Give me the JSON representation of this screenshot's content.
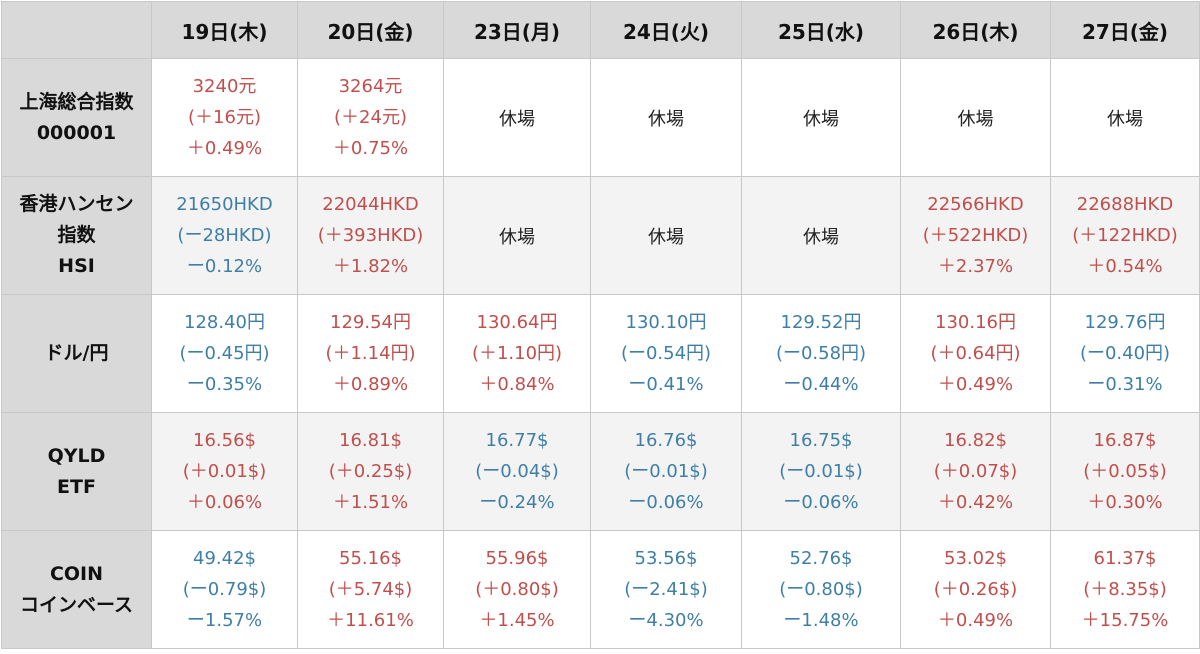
{
  "headers": [
    "19日(木)",
    "20日(金)",
    "23日(月)",
    "24日(火)",
    "25日(水)",
    "26日(木)",
    "27日(金)"
  ],
  "colors": {
    "up": "#c0504d",
    "down": "#3f7fa6",
    "header_bg": "#d9d9d9"
  },
  "rows": [
    {
      "label": [
        "上海総合指数",
        "000001"
      ],
      "cells": [
        {
          "closed": false,
          "dir": "up",
          "lines": [
            "3240元",
            "(＋16元)",
            "＋0.49%"
          ]
        },
        {
          "closed": false,
          "dir": "up",
          "lines": [
            "3264元",
            "(＋24元)",
            "＋0.75%"
          ]
        },
        {
          "closed": true,
          "text": "休場"
        },
        {
          "closed": true,
          "text": "休場"
        },
        {
          "closed": true,
          "text": "休場"
        },
        {
          "closed": true,
          "text": "休場"
        },
        {
          "closed": true,
          "text": "休場"
        }
      ]
    },
    {
      "label": [
        "香港ハンセン",
        "指数",
        "HSI"
      ],
      "cells": [
        {
          "closed": false,
          "dir": "down",
          "lines": [
            "21650HKD",
            "(ー28HKD)",
            "ー0.12%"
          ]
        },
        {
          "closed": false,
          "dir": "up",
          "lines": [
            "22044HKD",
            "(＋393HKD)",
            "＋1.82%"
          ]
        },
        {
          "closed": true,
          "text": "休場"
        },
        {
          "closed": true,
          "text": "休場"
        },
        {
          "closed": true,
          "text": "休場"
        },
        {
          "closed": false,
          "dir": "up",
          "lines": [
            "22566HKD",
            "(＋522HKD)",
            "＋2.37%"
          ]
        },
        {
          "closed": false,
          "dir": "up",
          "lines": [
            "22688HKD",
            "(＋122HKD)",
            "＋0.54%"
          ]
        }
      ]
    },
    {
      "label": [
        "ドル/円"
      ],
      "cells": [
        {
          "closed": false,
          "dir": "down",
          "lines": [
            "128.40円",
            "(ー0.45円)",
            "ー0.35%"
          ]
        },
        {
          "closed": false,
          "dir": "up",
          "lines": [
            "129.54円",
            "(＋1.14円)",
            "＋0.89%"
          ]
        },
        {
          "closed": false,
          "dir": "up",
          "lines": [
            "130.64円",
            "(＋1.10円)",
            "＋0.84%"
          ]
        },
        {
          "closed": false,
          "dir": "down",
          "lines": [
            "130.10円",
            "(ー0.54円)",
            "ー0.41%"
          ]
        },
        {
          "closed": false,
          "dir": "down",
          "lines": [
            "129.52円",
            "(ー0.58円)",
            "ー0.44%"
          ]
        },
        {
          "closed": false,
          "dir": "up",
          "lines": [
            "130.16円",
            "(＋0.64円)",
            "＋0.49%"
          ]
        },
        {
          "closed": false,
          "dir": "down",
          "lines": [
            "129.76円",
            "(ー0.40円)",
            "ー0.31%"
          ]
        }
      ]
    },
    {
      "label": [
        "QYLD",
        "ETF"
      ],
      "cells": [
        {
          "closed": false,
          "dir": "up",
          "lines": [
            "16.56$",
            "(＋0.01$)",
            "＋0.06%"
          ]
        },
        {
          "closed": false,
          "dir": "up",
          "lines": [
            "16.81$",
            "(＋0.25$)",
            "＋1.51%"
          ]
        },
        {
          "closed": false,
          "dir": "down",
          "lines": [
            "16.77$",
            "(ー0.04$)",
            "ー0.24%"
          ]
        },
        {
          "closed": false,
          "dir": "down",
          "lines": [
            "16.76$",
            "(ー0.01$)",
            "ー0.06%"
          ]
        },
        {
          "closed": false,
          "dir": "down",
          "lines": [
            "16.75$",
            "(ー0.01$)",
            "ー0.06%"
          ]
        },
        {
          "closed": false,
          "dir": "up",
          "lines": [
            "16.82$",
            "(＋0.07$)",
            "＋0.42%"
          ]
        },
        {
          "closed": false,
          "dir": "up",
          "lines": [
            "16.87$",
            "(＋0.05$)",
            "＋0.30%"
          ]
        }
      ]
    },
    {
      "label": [
        "COIN",
        "コインベース"
      ],
      "cells": [
        {
          "closed": false,
          "dir": "down",
          "lines": [
            "49.42$",
            "(ー0.79$)",
            "ー1.57%"
          ]
        },
        {
          "closed": false,
          "dir": "up",
          "lines": [
            "55.16$",
            "(＋5.74$)",
            "＋11.61%"
          ]
        },
        {
          "closed": false,
          "dir": "up",
          "lines": [
            "55.96$",
            "(＋0.80$)",
            "＋1.45%"
          ]
        },
        {
          "closed": false,
          "dir": "down",
          "lines": [
            "53.56$",
            "(ー2.41$)",
            "ー4.30%"
          ]
        },
        {
          "closed": false,
          "dir": "down",
          "lines": [
            "52.76$",
            "(ー0.80$)",
            "ー1.48%"
          ]
        },
        {
          "closed": false,
          "dir": "up",
          "lines": [
            "53.02$",
            "(＋0.26$)",
            "＋0.49%"
          ]
        },
        {
          "closed": false,
          "dir": "up",
          "lines": [
            "61.37$",
            "(＋8.35$)",
            "＋15.75%"
          ]
        }
      ]
    }
  ]
}
